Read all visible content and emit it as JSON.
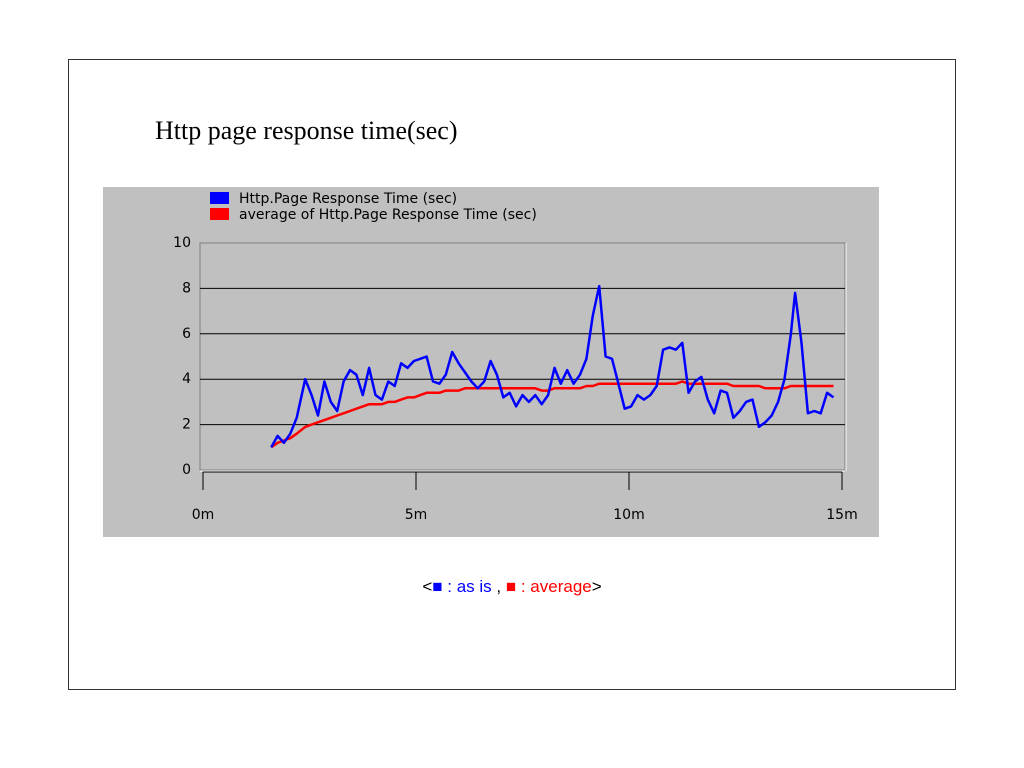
{
  "chart_data": {
    "type": "line",
    "title": "Http page response time(sec)",
    "x": [
      1.6,
      1.75,
      1.9,
      2.05,
      2.2,
      2.4,
      2.55,
      2.7,
      2.85,
      3.0,
      3.15,
      3.3,
      3.45,
      3.6,
      3.75,
      3.9,
      4.05,
      4.2,
      4.35,
      4.5,
      4.65,
      4.8,
      4.95,
      5.1,
      5.25,
      5.4,
      5.55,
      5.7,
      5.85,
      6.0,
      6.15,
      6.3,
      6.45,
      6.6,
      6.75,
      6.9,
      7.05,
      7.2,
      7.35,
      7.5,
      7.65,
      7.8,
      7.95,
      8.1,
      8.25,
      8.4,
      8.55,
      8.7,
      8.85,
      9.0,
      9.15,
      9.3,
      9.45,
      9.6,
      9.75,
      9.9,
      10.05,
      10.2,
      10.35,
      10.5,
      10.65,
      10.8,
      10.95,
      11.1,
      11.25,
      11.4,
      11.55,
      11.7,
      11.85,
      12.0,
      12.15,
      12.3,
      12.45,
      12.6,
      12.75,
      12.9,
      13.05,
      13.2,
      13.35,
      13.5,
      13.65,
      13.8,
      13.9,
      14.05,
      14.2,
      14.35,
      14.5,
      14.65,
      14.8
    ],
    "series": [
      {
        "name": "Http.Page Response Time (sec)",
        "color": "#0000ff",
        "values": [
          1.0,
          1.5,
          1.2,
          1.6,
          2.3,
          4.0,
          3.3,
          2.4,
          3.9,
          3.0,
          2.6,
          3.9,
          4.4,
          4.2,
          3.3,
          4.5,
          3.3,
          3.1,
          3.9,
          3.7,
          4.7,
          4.5,
          4.8,
          4.9,
          5.0,
          3.9,
          3.8,
          4.2,
          5.2,
          4.7,
          4.3,
          3.9,
          3.6,
          3.9,
          4.8,
          4.2,
          3.2,
          3.4,
          2.8,
          3.3,
          3.0,
          3.3,
          2.9,
          3.3,
          4.5,
          3.8,
          4.4,
          3.8,
          4.2,
          4.9,
          6.8,
          8.1,
          5.0,
          4.9,
          3.8,
          2.7,
          2.8,
          3.3,
          3.1,
          3.3,
          3.7,
          5.3,
          5.4,
          5.3,
          5.6,
          3.4,
          3.9,
          4.1,
          3.1,
          2.5,
          3.5,
          3.4,
          2.3,
          2.6,
          3.0,
          3.1,
          1.9,
          2.1,
          2.4,
          3.0,
          4.0,
          6.0,
          7.8,
          5.6,
          2.5,
          2.6,
          2.5,
          3.4,
          3.2
        ]
      },
      {
        "name": "average of Http.Page Response Time (sec)",
        "color": "#ff0000",
        "values": [
          1.0,
          1.2,
          1.3,
          1.4,
          1.6,
          1.9,
          2.0,
          2.1,
          2.2,
          2.3,
          2.4,
          2.5,
          2.6,
          2.7,
          2.8,
          2.9,
          2.9,
          2.9,
          3.0,
          3.0,
          3.1,
          3.2,
          3.2,
          3.3,
          3.4,
          3.4,
          3.4,
          3.5,
          3.5,
          3.5,
          3.6,
          3.6,
          3.6,
          3.6,
          3.6,
          3.6,
          3.6,
          3.6,
          3.6,
          3.6,
          3.6,
          3.6,
          3.5,
          3.5,
          3.6,
          3.6,
          3.6,
          3.6,
          3.6,
          3.7,
          3.7,
          3.8,
          3.8,
          3.8,
          3.8,
          3.8,
          3.8,
          3.8,
          3.8,
          3.8,
          3.8,
          3.8,
          3.8,
          3.8,
          3.9,
          3.8,
          3.8,
          3.8,
          3.8,
          3.8,
          3.8,
          3.8,
          3.7,
          3.7,
          3.7,
          3.7,
          3.7,
          3.6,
          3.6,
          3.6,
          3.6,
          3.7,
          3.7,
          3.7,
          3.7,
          3.7,
          3.7,
          3.7,
          3.7
        ]
      }
    ],
    "xlim": [
      0,
      15
    ],
    "xticks": [
      {
        "value": 0,
        "label": "0m"
      },
      {
        "value": 5,
        "label": "5m"
      },
      {
        "value": 10,
        "label": "10m"
      },
      {
        "value": 15,
        "label": "15m"
      }
    ],
    "ylim": [
      0,
      10
    ],
    "yticks": [
      0,
      2,
      4,
      6,
      8,
      10
    ],
    "grid": true,
    "legend": "top-left",
    "background": "#c0c0c0"
  },
  "caption": [
    {
      "text": "<",
      "color": "#000000"
    },
    {
      "text": "■",
      "color": "#0000ff"
    },
    {
      "text": " : as is ",
      "color": "#0000ff"
    },
    {
      "text": ",",
      "color": "#000000"
    },
    {
      "text": " ■",
      "color": "#ff0000"
    },
    {
      "text": " : average",
      "color": "#ff0000"
    },
    {
      "text": ">",
      "color": "#000000"
    }
  ]
}
